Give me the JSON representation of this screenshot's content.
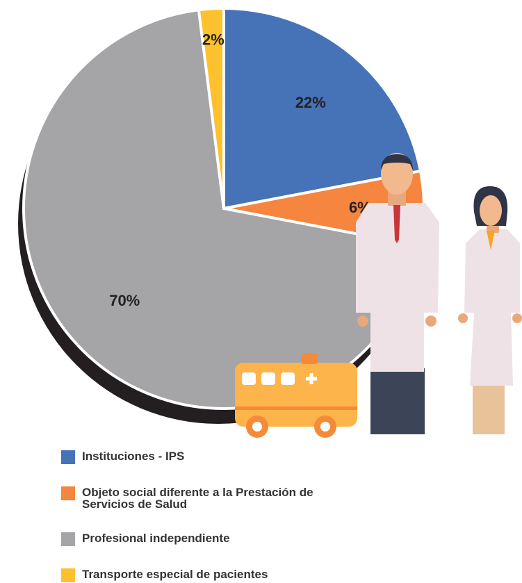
{
  "chart_data": {
    "type": "pie",
    "categories": [
      "Instituciones - IPS",
      "Objeto social diferente a la Prestación de Servicios de Salud",
      "Profesional independiente",
      "Transporte especial de pacientes"
    ],
    "values": [
      22,
      6,
      70,
      2
    ],
    "value_labels": [
      "22%",
      "6%",
      "70%",
      "2%"
    ],
    "colors": [
      "#4672b8",
      "#f5853f",
      "#a5a5a8",
      "#fcc12d"
    ]
  }
}
